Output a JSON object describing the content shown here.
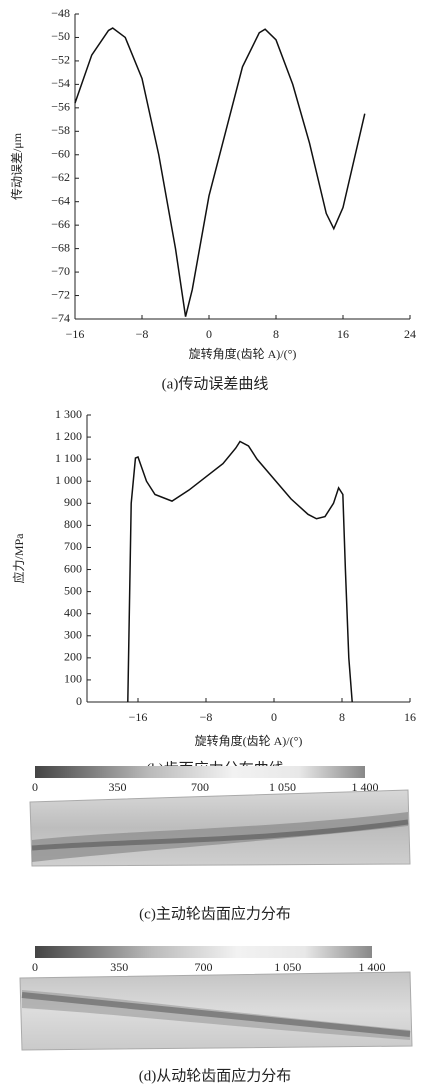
{
  "chart_data": [
    {
      "type": "line",
      "caption": "(a)传动误差曲线",
      "xlabel": "旋转角度(齿轮 A)/(°)",
      "ylabel": "传动误差/μm",
      "x": [
        -16,
        -14,
        -12,
        -11.5,
        -10,
        -8,
        -6,
        -4,
        -2.8,
        -2,
        0,
        2,
        4,
        6,
        6.7,
        8,
        10,
        12,
        14,
        14.9,
        16,
        18.6
      ],
      "series": [
        {
          "color": "#111111",
          "values": [
            -55.6,
            -51.5,
            -49.4,
            -49.2,
            -50,
            -53.5,
            -60,
            -68,
            -73.8,
            -71.5,
            -63.5,
            -58,
            -52.5,
            -49.6,
            -49.3,
            -50.2,
            -54,
            -59,
            -65,
            -66.3,
            -64.5,
            -56.5
          ]
        }
      ],
      "xlim": [
        -16,
        24
      ],
      "xticks": [
        {
          "value": -16,
          "label": "−16"
        },
        {
          "value": -8,
          "label": "−8"
        },
        0,
        8,
        16,
        24
      ],
      "ylim": [
        -74,
        -48
      ],
      "yticks": [
        {
          "value": -74,
          "label": "−74"
        },
        {
          "value": -72,
          "label": "−72"
        },
        {
          "value": -70,
          "label": "−70"
        },
        {
          "value": -68,
          "label": "−68"
        },
        {
          "value": -66,
          "label": "−66"
        },
        {
          "value": -64,
          "label": "−64"
        },
        {
          "value": -62,
          "label": "−62"
        },
        {
          "value": -60,
          "label": "−60"
        },
        {
          "value": -58,
          "label": "−58"
        },
        {
          "value": -56,
          "label": "−56"
        },
        {
          "value": -54,
          "label": "−54"
        },
        {
          "value": -52,
          "label": "−52"
        },
        {
          "value": -50,
          "label": "−50"
        },
        {
          "value": -48,
          "label": "−48"
        }
      ]
    },
    {
      "type": "line",
      "caption": "(b)齿面应力分布曲线",
      "xlabel": "旋转角度(齿轮 A)/(°)",
      "ylabel": "应力/MPa",
      "x": [
        -17.2,
        -16.8,
        -16.3,
        -16,
        -15,
        -14,
        -12,
        -10,
        -8,
        -6,
        -4.5,
        -4,
        -3,
        -2,
        0,
        2,
        4,
        5,
        6,
        7,
        7.6,
        8.1,
        8.4,
        8.8,
        9.2
      ],
      "series": [
        {
          "color": "#111111",
          "values": [
            0,
            900,
            1105,
            1110,
            1000,
            940,
            910,
            960,
            1020,
            1080,
            1150,
            1180,
            1160,
            1100,
            1010,
            920,
            850,
            830,
            840,
            900,
            970,
            940,
            600,
            200,
            0
          ]
        }
      ],
      "xlim": [
        -22,
        16
      ],
      "xticks": [
        {
          "value": -16,
          "label": "−16"
        },
        {
          "value": -8,
          "label": "−8"
        },
        0,
        8,
        16
      ],
      "ylim": [
        0,
        1300
      ],
      "yticks": [
        0,
        100,
        200,
        300,
        400,
        500,
        600,
        700,
        800,
        900,
        {
          "value": 1000,
          "label": "1 000"
        },
        {
          "value": 1100,
          "label": "1 100"
        },
        {
          "value": 1200,
          "label": "1 200"
        },
        {
          "value": 1300,
          "label": "1 300"
        }
      ]
    },
    {
      "type": "colorbar",
      "caption": "(c)主动轮齿面应力分布",
      "xlim": [
        0,
        1400
      ],
      "xticks": [
        0,
        350,
        700,
        {
          "value": 1050,
          "label": "1 050"
        },
        {
          "value": 1400,
          "label": "1 400"
        }
      ]
    },
    {
      "type": "colorbar",
      "caption": "(d)从动轮齿面应力分布",
      "xlim": [
        0,
        1400
      ],
      "xticks": [
        0,
        350,
        700,
        {
          "value": 1050,
          "label": "1 050"
        },
        {
          "value": 1400,
          "label": "1 400"
        }
      ]
    }
  ]
}
